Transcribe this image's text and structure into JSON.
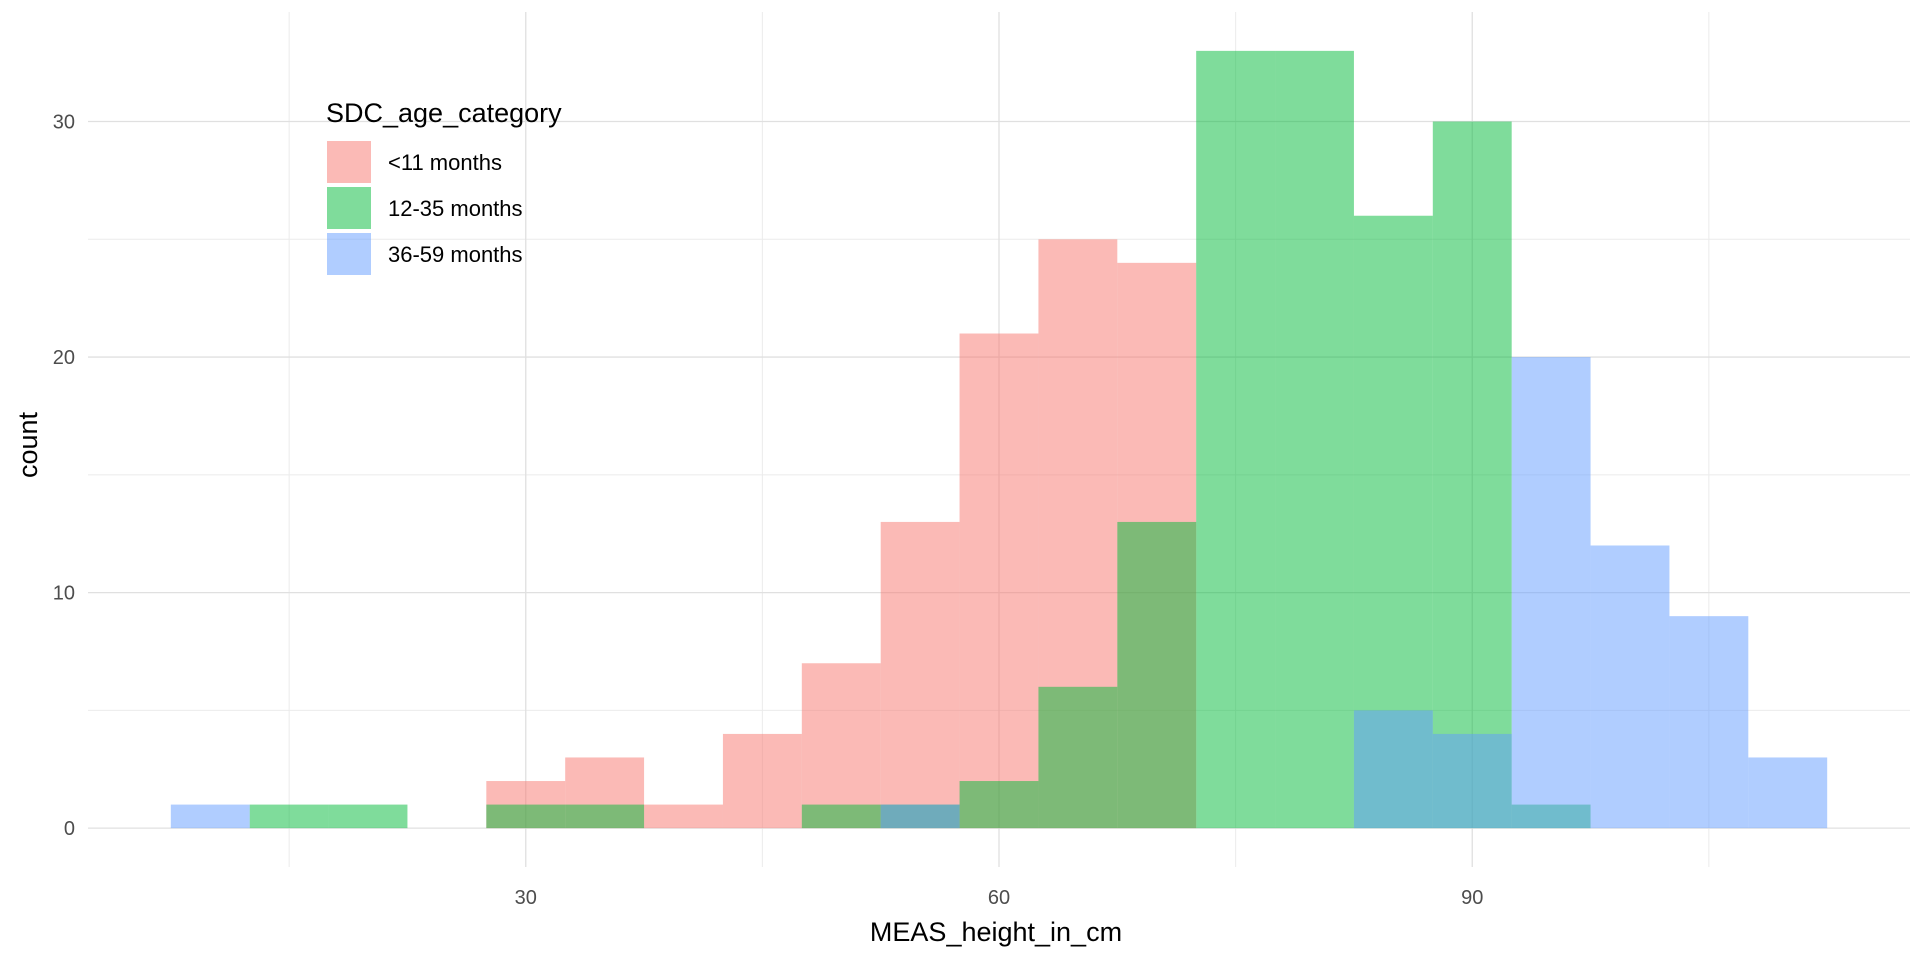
{
  "chart_data": {
    "type": "histogram",
    "xlabel": "MEAS_height_in_cm",
    "ylabel": "count",
    "xlim": [
      2.25,
      117.75
    ],
    "ylim": [
      -1.65,
      34.65
    ],
    "x_ticks": [
      30,
      60,
      90
    ],
    "y_ticks": [
      0,
      10,
      20,
      30
    ],
    "x_minor_ticks": [
      15,
      45,
      75,
      105
    ],
    "y_minor_ticks": [
      5,
      15,
      25
    ],
    "grid": true,
    "bin_width": 5,
    "legend": {
      "title": "SDC_age_category",
      "position": "top-left"
    },
    "series": [
      {
        "name": "<11 months",
        "color": "#F8766D",
        "bins": [
          {
            "x0": 27.5,
            "x1": 32.5,
            "count": 2
          },
          {
            "x0": 32.5,
            "x1": 37.5,
            "count": 3
          },
          {
            "x0": 37.5,
            "x1": 42.5,
            "count": 1
          },
          {
            "x0": 42.5,
            "x1": 47.5,
            "count": 4
          },
          {
            "x0": 47.5,
            "x1": 52.5,
            "count": 7
          },
          {
            "x0": 52.5,
            "x1": 57.5,
            "count": 13
          },
          {
            "x0": 57.5,
            "x1": 62.5,
            "count": 21
          },
          {
            "x0": 62.5,
            "x1": 67.5,
            "count": 25
          },
          {
            "x0": 67.5,
            "x1": 72.5,
            "count": 24
          }
        ]
      },
      {
        "name": "12-35 months",
        "color": "#00BA38",
        "bins": [
          {
            "x0": 12.5,
            "x1": 17.5,
            "count": 1
          },
          {
            "x0": 17.5,
            "x1": 22.5,
            "count": 1
          },
          {
            "x0": 27.5,
            "x1": 32.5,
            "count": 1
          },
          {
            "x0": 32.5,
            "x1": 37.5,
            "count": 1
          },
          {
            "x0": 47.5,
            "x1": 52.5,
            "count": 1
          },
          {
            "x0": 52.5,
            "x1": 57.5,
            "count": 1
          },
          {
            "x0": 57.5,
            "x1": 62.5,
            "count": 2
          },
          {
            "x0": 62.5,
            "x1": 67.5,
            "count": 6
          },
          {
            "x0": 67.5,
            "x1": 72.5,
            "count": 13
          },
          {
            "x0": 72.5,
            "x1": 77.5,
            "count": 33
          },
          {
            "x0": 77.5,
            "x1": 82.5,
            "count": 33
          },
          {
            "x0": 82.5,
            "x1": 87.5,
            "count": 26
          },
          {
            "x0": 87.5,
            "x1": 92.5,
            "count": 30
          },
          {
            "x0": 92.5,
            "x1": 97.5,
            "count": 1
          }
        ]
      },
      {
        "name": "36-59 months",
        "color": "#619CFF",
        "bins": [
          {
            "x0": 7.5,
            "x1": 12.5,
            "count": 1
          },
          {
            "x0": 52.5,
            "x1": 57.5,
            "count": 1
          },
          {
            "x0": 82.5,
            "x1": 87.5,
            "count": 5
          },
          {
            "x0": 87.5,
            "x1": 92.5,
            "count": 4
          },
          {
            "x0": 92.5,
            "x1": 97.5,
            "count": 20
          },
          {
            "x0": 97.5,
            "x1": 102.5,
            "count": 12
          },
          {
            "x0": 102.5,
            "x1": 107.5,
            "count": 9
          },
          {
            "x0": 107.5,
            "x1": 112.5,
            "count": 3
          }
        ]
      }
    ]
  }
}
